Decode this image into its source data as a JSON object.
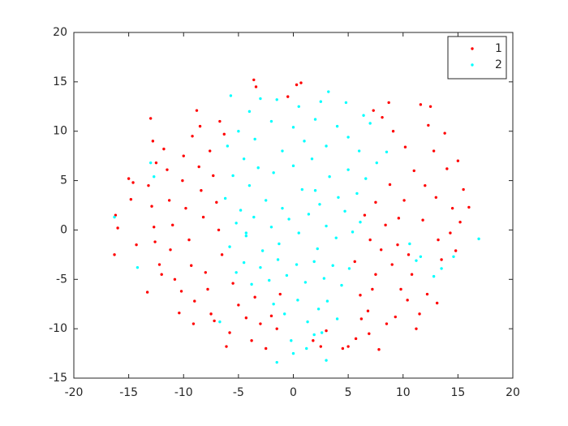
{
  "chart_data": {
    "type": "scatter",
    "xlim": [
      -20,
      20
    ],
    "ylim": [
      -15,
      20
    ],
    "xticks": [
      -20,
      -15,
      -10,
      -5,
      0,
      5,
      10,
      15,
      20
    ],
    "yticks": [
      -15,
      -10,
      -5,
      0,
      5,
      10,
      15,
      20
    ],
    "grid": false,
    "legend": "upper right",
    "series": [
      {
        "name": "1",
        "color": "#ff0000",
        "x": [
          -16.2,
          -16.3,
          -16,
          -15,
          -14.6,
          -14.8,
          -14.3,
          -13.3,
          -13,
          -12.8,
          -12.5,
          -13.2,
          -12.9,
          -12.7,
          -12.6,
          -12.2,
          -12,
          -11.8,
          -11.5,
          -11.3,
          -11,
          -11.2,
          -10.8,
          -10.4,
          -10.2,
          -10,
          -10.1,
          -9.8,
          -9.5,
          -9.3,
          -9.1,
          -9,
          -9.2,
          -8.8,
          -8.5,
          -8.6,
          -8.4,
          -8.2,
          -8,
          -7.8,
          -7.5,
          -7.2,
          -7.6,
          -7.3,
          -7,
          -6.8,
          -6.5,
          -6.7,
          -6.3,
          -6.1,
          -5.8,
          -5.5,
          -5,
          -4.3,
          -3.8,
          -3.5,
          -3,
          -2.5,
          -2,
          -1.5,
          -3.6,
          -3.4,
          -0.5,
          0.3,
          0.7,
          -1.2,
          1.8,
          2.5,
          3,
          4.5,
          5,
          5.7,
          6.2,
          6.8,
          7.2,
          7.5,
          7.3,
          8.1,
          8.7,
          9.1,
          6.9,
          7.8,
          8.5,
          8,
          7,
          6.5,
          7.5,
          8.4,
          9,
          9.5,
          9.8,
          10.1,
          10.5,
          10.2,
          11,
          10.8,
          11.5,
          11.2,
          11.8,
          12,
          12.2,
          12.5,
          12.8,
          13,
          13.2,
          13.5,
          13.8,
          14,
          14.3,
          14.5,
          15,
          15.2,
          15.5,
          16,
          11.6,
          12.3,
          13.1,
          10.4,
          9.3,
          14.8,
          8.8,
          9.6,
          6.1,
          5.6
        ],
        "values": [
          1.5,
          -2.5,
          0.2,
          5.2,
          4.8,
          3.1,
          -1.5,
          -6.3,
          11.3,
          9,
          6.8,
          4.5,
          2.4,
          0.3,
          -1.2,
          -3.5,
          -4.5,
          8.2,
          6.1,
          3,
          0.5,
          -2,
          -5,
          -8.4,
          -6.2,
          7.5,
          5,
          2.2,
          -1,
          -3.6,
          -9.5,
          -7.2,
          9.5,
          12.1,
          10.5,
          6.4,
          4,
          1.3,
          -4.3,
          -6,
          -8.5,
          -9.2,
          8,
          5.5,
          2.8,
          0,
          -2.5,
          11,
          9.7,
          -11.8,
          -10.4,
          -5.4,
          -7.6,
          -8.9,
          -11.2,
          -6.8,
          -9.5,
          -12,
          -8.7,
          -10,
          15.2,
          14.5,
          13.5,
          14.7,
          14.9,
          -6.5,
          -11.2,
          -11.8,
          -10.2,
          -12,
          -11.8,
          -11,
          -9,
          -8.2,
          -6,
          -4.5,
          12.1,
          11.4,
          12.9,
          10,
          -10.5,
          -12.1,
          -9.5,
          -2,
          -1,
          1.5,
          2.8,
          0.5,
          -3.5,
          -1.5,
          -6,
          3,
          -2.5,
          8.4,
          6,
          -4.5,
          -8.5,
          -10,
          1,
          4.5,
          -6.5,
          12.5,
          8,
          3.3,
          -1,
          -3,
          9.8,
          6.2,
          -0.3,
          2.2,
          7,
          0.8,
          4.1,
          2.3,
          12.7,
          10.6,
          -7.4,
          -7.1,
          -8.8,
          -2.1,
          4.6,
          1.2,
          -6.6,
          -3.2
        ]
      },
      {
        "name": "2",
        "color": "#00ffff",
        "x": [
          -5.7,
          -4,
          -3,
          -1.5,
          0.5,
          2.5,
          3.2,
          4.8,
          -6,
          -5,
          -4.5,
          -3.5,
          -2,
          -1,
          0,
          1,
          2,
          3,
          4,
          5,
          6,
          7,
          8.5,
          -6.2,
          -5.5,
          -4.8,
          -4,
          -3.2,
          -2.5,
          -1.8,
          -1,
          0,
          0.8,
          1.7,
          2.4,
          3.3,
          4.1,
          5,
          5.8,
          6.6,
          7.6,
          -5.8,
          -5.2,
          -4.3,
          -3.6,
          -2.8,
          -2,
          -1.3,
          -0.4,
          0.5,
          1.4,
          2.2,
          3,
          3.9,
          4.7,
          5.4,
          6.1,
          -5.2,
          -4.5,
          -3.8,
          -3,
          -2.2,
          -1.4,
          -0.6,
          0.3,
          1.1,
          1.9,
          2.8,
          3.6,
          4.4,
          5.1,
          -1.8,
          -0.8,
          0.4,
          1.3,
          2.3,
          3.1,
          4,
          -0.2,
          1.2,
          1.9,
          2.6,
          3,
          -1.5,
          0,
          -12.7,
          -14.2,
          -13,
          -16.3,
          16.9,
          14.6,
          13.5,
          12.8,
          11.6,
          10.6,
          11.2,
          6.4,
          -6.7,
          -4.3,
          2
        ],
        "values": [
          13.6,
          12,
          13.3,
          13.2,
          12.5,
          13,
          14,
          12.9,
          8.5,
          10,
          7.2,
          9.2,
          11,
          8,
          10.4,
          9,
          11.2,
          8.5,
          10.5,
          9.4,
          8,
          10.8,
          7.9,
          3.2,
          5.5,
          2,
          4.5,
          6.3,
          3,
          5.8,
          2.2,
          6.5,
          4.1,
          7.2,
          2.6,
          5.4,
          3.3,
          6.1,
          3.7,
          5.2,
          6.8,
          -1.7,
          0.7,
          -0.6,
          1.3,
          -2.1,
          0.3,
          -1.4,
          1.1,
          -0.3,
          1.6,
          -1.9,
          0.4,
          -0.8,
          1.9,
          -0.2,
          0.8,
          -4.3,
          -3.3,
          -5.5,
          -3.8,
          -5.1,
          -3,
          -4.6,
          -3.5,
          -5.3,
          -3.2,
          -4.9,
          -3.6,
          -5.6,
          -3.9,
          -7.5,
          -8.5,
          -7.1,
          -9.3,
          -8,
          -7.2,
          -9,
          -11.2,
          -12,
          -10.6,
          -10.4,
          -13.2,
          -13.4,
          -12.5,
          5.4,
          -3.8,
          6.8,
          1.3,
          -0.9,
          -2.7,
          -3.9,
          -4.7,
          -2.7,
          -1.4,
          -3.1,
          11.6,
          -9.3,
          -0.3,
          4
        ]
      }
    ]
  }
}
